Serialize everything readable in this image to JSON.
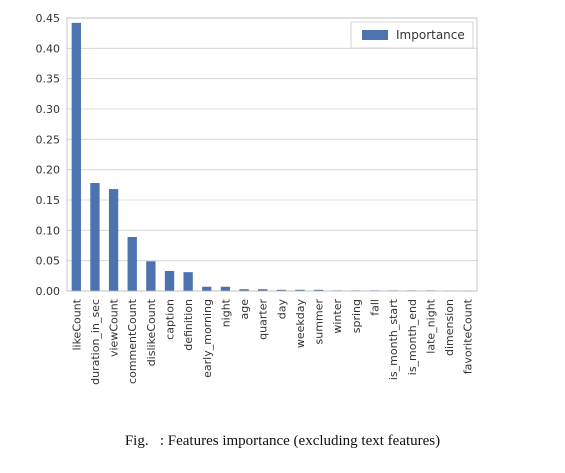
{
  "chart_data": {
    "type": "bar",
    "categories": [
      "likeCount",
      "duration_in_sec",
      "viewCount",
      "commentCount",
      "dislikeCount",
      "caption",
      "definition",
      "early_morning",
      "night",
      "age",
      "quarter",
      "day",
      "weekday",
      "summer",
      "winter",
      "spring",
      "fall",
      "is_month_start",
      "is_month_end",
      "late_night",
      "dimension",
      "favoriteCount"
    ],
    "series": [
      {
        "name": "Importance",
        "values": [
          0.442,
          0.178,
          0.168,
          0.089,
          0.049,
          0.033,
          0.031,
          0.007,
          0.007,
          0.003,
          0.003,
          0.002,
          0.002,
          0.002,
          0.001,
          0.001,
          0.001,
          0.001,
          0.001,
          0.001,
          0.0005,
          0.0005
        ]
      }
    ],
    "ylim": [
      0,
      0.45
    ],
    "yticks": [
      "0.00",
      "0.05",
      "0.10",
      "0.15",
      "0.20",
      "0.25",
      "0.30",
      "0.35",
      "0.40",
      "0.45"
    ],
    "grid": true,
    "legend": "top-right",
    "colors": {
      "bar": "#4c72b0",
      "grid": "#d0d0d0",
      "plot_bg": "#ffffff"
    }
  },
  "caption": "Fig.   : Features importance (excluding text features)"
}
